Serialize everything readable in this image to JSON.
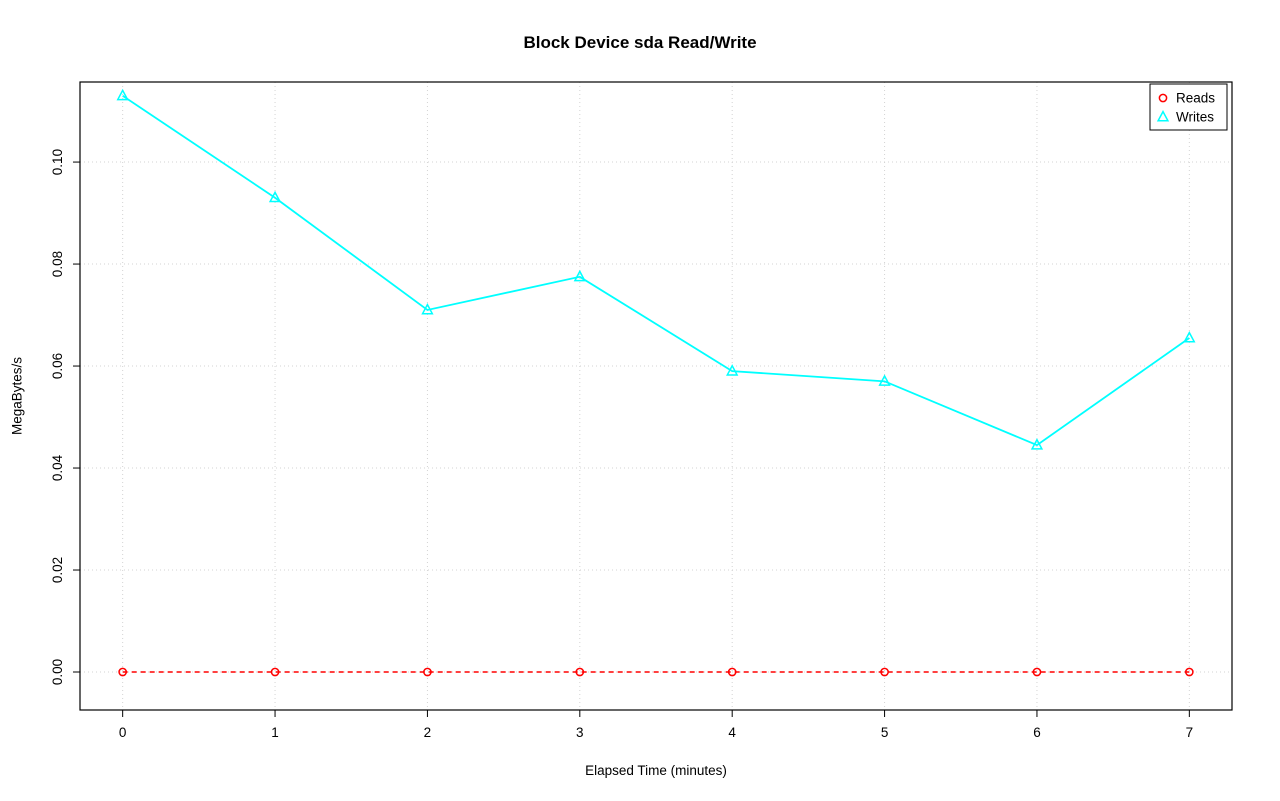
{
  "chart_data": {
    "type": "line",
    "title": "Block Device sda Read/Write",
    "xlabel": "Elapsed Time (minutes)",
    "ylabel": "MegaBytes/s",
    "x": [
      0,
      1,
      2,
      3,
      4,
      5,
      6,
      7
    ],
    "series": [
      {
        "name": "Reads",
        "color": "#FF0000",
        "marker": "circle",
        "line_style": "dashed",
        "values": [
          0,
          0,
          0,
          0,
          0,
          0,
          0,
          0
        ]
      },
      {
        "name": "Writes",
        "color": "#00FFFF",
        "marker": "triangle",
        "line_style": "solid",
        "values": [
          0.113,
          0.093,
          0.071,
          0.0775,
          0.059,
          0.057,
          0.0445,
          0.0655
        ]
      }
    ],
    "xticks": [
      0,
      1,
      2,
      3,
      4,
      5,
      6,
      7
    ],
    "xtick_labels": [
      "0",
      "1",
      "2",
      "3",
      "4",
      "5",
      "6",
      "7"
    ],
    "yticks": [
      0,
      0.02,
      0.04,
      0.06,
      0.08,
      0.1
    ],
    "ytick_labels": [
      "0.00",
      "0.02",
      "0.04",
      "0.06",
      "0.08",
      "0.10"
    ],
    "xlim": [
      -0.28,
      7.28
    ],
    "ylim": [
      -0.00745,
      0.1157
    ],
    "grid": true,
    "grid_color": "#D3D3D3",
    "axis_color": "#000000",
    "legend": {
      "position": "top-right",
      "entries": [
        "Reads",
        "Writes"
      ]
    }
  }
}
